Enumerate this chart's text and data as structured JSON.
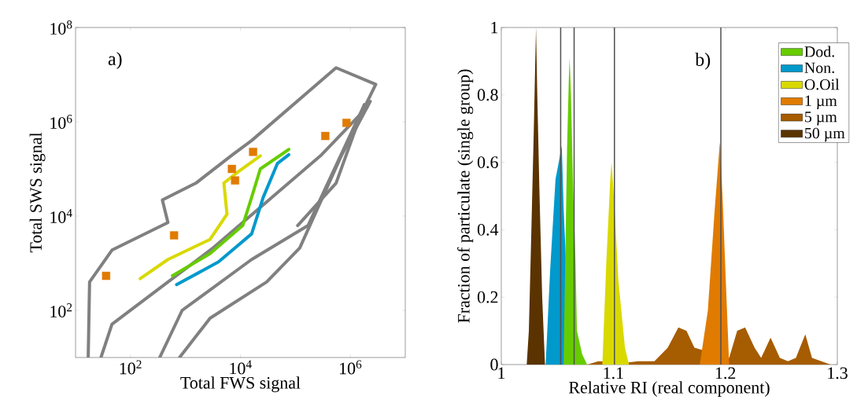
{
  "chart_data": [
    {
      "type": "line",
      "xlabel": "Total FWS signal",
      "ylabel": "Total SWS signal",
      "annotations": [
        "a)"
      ],
      "log": "xy",
      "xlim": [
        10,
        10000000
      ],
      "ylim": [
        10,
        100000000
      ],
      "xticks": [
        {
          "value": 100,
          "label": "10$^{2}$"
        },
        {
          "value": 10000,
          "label": "10$^{4}$"
        },
        {
          "value": 1000000,
          "label": "10$^{6}$"
        }
      ],
      "yticks": [
        {
          "value": 100,
          "label": "10$^{2}$"
        },
        {
          "value": 10000,
          "label": "10$^{4}$"
        },
        {
          "value": 1000000,
          "label": "10$^{6}$"
        },
        {
          "value": 100000000,
          "label": "10$^{8}$"
        }
      ],
      "series": [
        {
          "color": "#808080",
          "x": [
            17,
            18,
            46,
            480,
            380,
            1550,
            7200,
            16000,
            550000,
            2900000,
            1800000
          ],
          "values": [
            10,
            400,
            1900,
            7300,
            22000,
            50000,
            200000,
            400000,
            14000000,
            6200000,
            2000000
          ]
        },
        {
          "color": "#808080",
          "x": [
            29,
            46,
            480,
            3000,
            30000,
            300000,
            2000000
          ],
          "values": [
            10,
            51,
            400,
            2000,
            20000,
            200000,
            2000000
          ]
        },
        {
          "color": "#808080",
          "x": [
            340,
            870,
            16000,
            170000,
            1800000
          ],
          "values": [
            10,
            100,
            1200,
            6300,
            2300000
          ]
        },
        {
          "color": "#808080",
          "x": [
            780,
            2800,
            30000,
            120000,
            700000,
            2300000
          ],
          "values": [
            10,
            68,
            400,
            2100,
            200000,
            2700000
          ]
        },
        {
          "color": "#808080",
          "x": [
            110000,
            550000,
            1800000
          ],
          "values": [
            6300,
            50000,
            2300000
          ]
        },
        {
          "type": "scatter",
          "marker": "square",
          "color": "#e07b00",
          "x": [
            36,
            620,
            7000,
            8000,
            17000,
            350000,
            850000
          ],
          "values": [
            540,
            3900,
            100000,
            57000,
            230000,
            500000,
            950000
          ]
        },
        {
          "color": "#0099cc",
          "x": [
            690,
            4000,
            16000,
            26000,
            47000,
            76000
          ],
          "values": [
            350,
            1070,
            4200,
            25000,
            130000,
            200000
          ]
        },
        {
          "color": "#66cc00",
          "x": [
            580,
            2800,
            11000,
            16000,
            23000,
            76000
          ],
          "values": [
            540,
            1600,
            6300,
            25000,
            100000,
            260000
          ]
        },
        {
          "color": "#d9d900",
          "x": [
            150,
            480,
            2800,
            5700,
            5000,
            9100,
            23000
          ],
          "values": [
            470,
            1200,
            3200,
            11000,
            50000,
            87000,
            190000
          ]
        }
      ]
    },
    {
      "type": "area",
      "xlabel": "Relative RI (real component)",
      "ylabel": "Fraction of particulate (single group)",
      "annotations": [
        "b)"
      ],
      "legend": "top right",
      "xlim": [
        1,
        1.3
      ],
      "ylim": [
        0,
        1
      ],
      "xticks": [
        1,
        1.1,
        1.2,
        1.3
      ],
      "yticks": [
        0,
        0.2,
        0.4,
        0.6,
        0.8,
        1
      ],
      "ref_lines": [
        {
          "axis": "x",
          "value": 1.053,
          "color": "#505050"
        },
        {
          "axis": "x",
          "value": 1.065,
          "color": "#505050"
        },
        {
          "axis": "x",
          "value": 1.101,
          "color": "#505050"
        },
        {
          "axis": "x",
          "value": 1.196,
          "color": "#505050"
        }
      ],
      "series": [
        {
          "name": "Dod.",
          "color": "#66cc00",
          "x": [
            1.0556,
            1.0587,
            1.0603,
            1.061,
            1.0622,
            1.0639,
            1.0663,
            1.0675,
            1.0723,
            1.0766
          ],
          "values": [
            0,
            0.64,
            0.85,
            0.91,
            0.8,
            0.55,
            0.3,
            0.1,
            0.03,
            0
          ]
        },
        {
          "name": "Non.",
          "color": "#0099cc",
          "x": [
            1.0396,
            1.0436,
            1.0484,
            1.0513,
            1.054,
            1.0556,
            1.058,
            1.0603,
            1.0615
          ],
          "values": [
            0,
            0.28,
            0.55,
            0.6,
            0.65,
            0.47,
            0.28,
            null,
            0
          ]
        },
        {
          "name": "O.Oil",
          "color": "#d9d900",
          "x": [
            1.0902,
            1.0937,
            1.0973,
            1.0985,
            1.1009,
            1.1045,
            1.1104,
            1.114
          ],
          "values": [
            0,
            0.3,
            0.55,
            0.6,
            0.48,
            0.25,
            0.05,
            0
          ]
        },
        {
          "name": "1 µm",
          "color": "#e07b00",
          "x": [
            1.1772,
            1.1844,
            1.1903,
            1.1951,
            1.1975,
            1.201,
            1.2034
          ],
          "values": [
            0,
            0.16,
            0.45,
            0.66,
            0.5,
            0.2,
            0
          ]
        },
        {
          "name": "5 µm",
          "color": "#a65c00",
          "x": [
            1.077,
            1.0866,
            1.0937,
            1.1009,
            1.1104,
            1.1223,
            1.1367,
            1.1486,
            1.1581,
            1.1653,
            1.1724,
            1.1808,
            1.1963,
            1.2034,
            1.2106,
            1.2177,
            1.2261,
            1.232,
            1.2404,
            1.2487,
            1.2559,
            1.263,
            1.2714,
            1.2774,
            1.294
          ],
          "values": [
            0,
            0.01,
            null,
            null,
            0.005,
            0.01,
            0.01,
            0.05,
            0.11,
            0.1,
            0.05,
            null,
            null,
            0.02,
            0.1,
            0.11,
            0.05,
            0.02,
            0.08,
            0.02,
            0.01,
            0.02,
            0.09,
            0.02,
            0
          ]
        },
        {
          "name": "50 µm",
          "color": "#5a3300",
          "x": [
            1.0227,
            1.0246,
            1.027,
            1.0289,
            1.03,
            1.031,
            1.032,
            1.034,
            1.0365,
            1.039
          ],
          "values": [
            0,
            0.1,
            0.42,
            0.68,
            0.85,
            1.0,
            0.82,
            0.52,
            0.2,
            0
          ]
        }
      ]
    }
  ]
}
